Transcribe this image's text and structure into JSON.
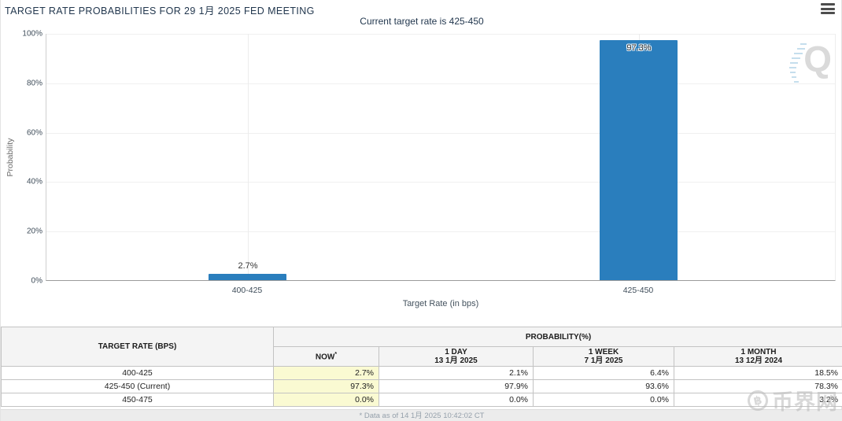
{
  "header": {
    "title": "TARGET RATE PROBABILITIES FOR 29 1月 2025 FED MEETING"
  },
  "chart": {
    "subtitle": "Current target rate is 425-450",
    "ylabel": "Probability",
    "xlabel": "Target Rate (in bps)",
    "yticks": [
      "100%",
      "80%",
      "60%",
      "40%",
      "20%",
      "0%"
    ],
    "bar_color": "#2a7ebd",
    "now_highlight_color": "#fafad2"
  },
  "chart_data": {
    "type": "bar",
    "title": "TARGET RATE PROBABILITIES FOR 29 1月 2025 FED MEETING",
    "subtitle": "Current target rate is 425-450",
    "categories": [
      "400-425",
      "425-450"
    ],
    "values": [
      2.7,
      97.3
    ],
    "bar_labels": [
      "2.7%",
      "97.3%"
    ],
    "xlabel": "Target Rate (in bps)",
    "ylabel": "Probability",
    "ylim": [
      0,
      100
    ],
    "grid": true,
    "legend": false
  },
  "table": {
    "col1_header": "TARGET RATE (BPS)",
    "group_header": "PROBABILITY(%)",
    "columns": [
      {
        "line1": "NOW",
        "sup": "*",
        "line2": ""
      },
      {
        "line1": "1 DAY",
        "sup": "",
        "line2": "13 1月 2025"
      },
      {
        "line1": "1 WEEK",
        "sup": "",
        "line2": "7 1月 2025"
      },
      {
        "line1": "1 MONTH",
        "sup": "",
        "line2": "13 12月 2024"
      }
    ],
    "rows": [
      {
        "range": "400-425",
        "values": [
          "2.7%",
          "2.1%",
          "6.4%",
          "18.5%"
        ]
      },
      {
        "range": "425-450 (Current)",
        "values": [
          "97.3%",
          "97.9%",
          "93.6%",
          "78.3%"
        ]
      },
      {
        "range": "450-475",
        "values": [
          "0.0%",
          "0.0%",
          "0.0%",
          "3.2%"
        ]
      }
    ]
  },
  "footer": {
    "note": "* Data as of 14 1月 2025 10:42:02 CT"
  },
  "watermarks": {
    "logo_letter": "Q",
    "coin_symbol": "฿",
    "site_name": "币界网"
  }
}
